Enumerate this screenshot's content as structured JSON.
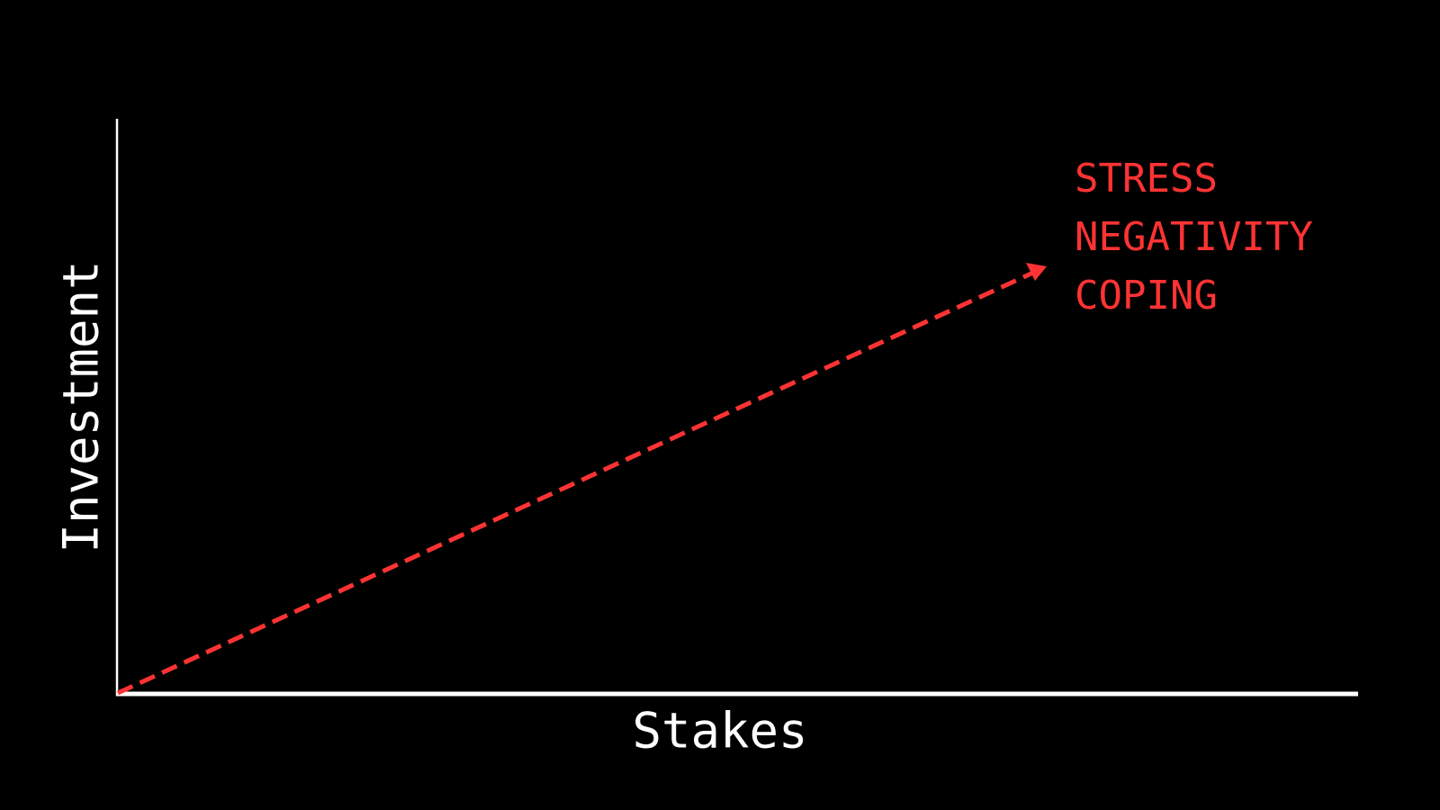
{
  "axes": {
    "x_label": "Stakes",
    "y_label": "Investment"
  },
  "arrow": {
    "style": "dashed",
    "direction": "up-right"
  },
  "annotations": [
    "STRESS",
    "NEGATIVITY",
    "COPING"
  ],
  "colors": {
    "background": "#000000",
    "axes": "#ffffff",
    "accent": "#ff3333"
  }
}
